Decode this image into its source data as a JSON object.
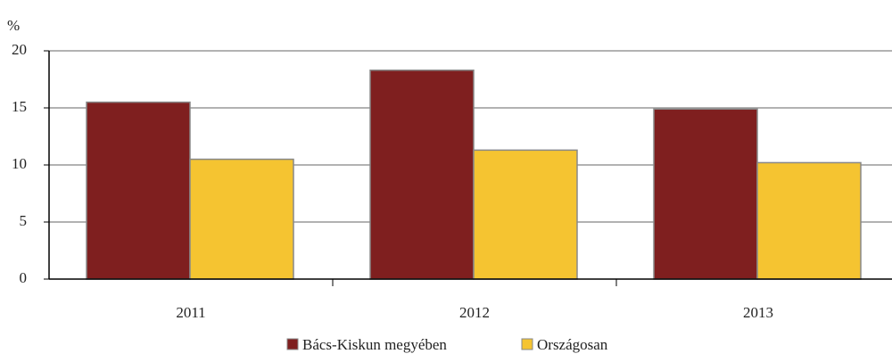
{
  "chart_data": {
    "type": "bar",
    "y_label": "%",
    "categories": [
      "2011",
      "2012",
      "2013"
    ],
    "series": [
      {
        "name": "Bács-Kiskun megyében",
        "color": "#7f1f1f",
        "values": [
          15.5,
          18.3,
          14.9
        ]
      },
      {
        "name": "Országosan",
        "color": "#f5c431",
        "values": [
          10.5,
          11.3,
          10.2
        ]
      }
    ],
    "ylim": [
      0,
      20
    ],
    "yticks": [
      0,
      5,
      10,
      15,
      20
    ],
    "grid": true
  }
}
